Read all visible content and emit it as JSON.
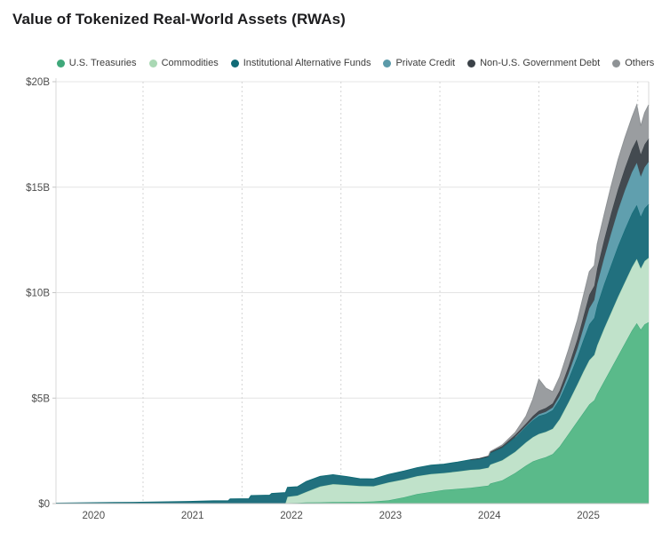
{
  "title": "Value of Tokenized Real-World Assets (RWAs)",
  "colors": {
    "background": "#ffffff",
    "title_text": "#1d1d1f",
    "legend_text": "#3c3c3c",
    "tick_text": "#4d4d4d",
    "grid_solid": "#e4e4e4",
    "grid_dashed": "#d4d4d4",
    "plot_border": "#d8d8d8",
    "axis_line": "#c6c6c6"
  },
  "chart_data": {
    "type": "area",
    "stacked": true,
    "title": "Value of Tokenized Real-World Assets (RWAs)",
    "unit": "USD billions",
    "legend_position": "top",
    "grid": "on",
    "x_domain": [
      2019.62,
      2025.61
    ],
    "x": [
      2019.62,
      2020.0,
      2020.4,
      2020.96,
      2021.21,
      2021.36,
      2021.38,
      2021.57,
      2021.59,
      2021.78,
      2021.8,
      2021.94,
      2021.96,
      2022.06,
      2022.15,
      2022.29,
      2022.42,
      2022.56,
      2022.69,
      2022.83,
      2022.98,
      2023.14,
      2023.27,
      2023.41,
      2023.54,
      2023.68,
      2023.81,
      2023.9,
      2023.99,
      2024.01,
      2024.13,
      2024.26,
      2024.37,
      2024.44,
      2024.5,
      2024.57,
      2024.64,
      2024.71,
      2024.8,
      2024.89,
      2024.95,
      2025.01,
      2025.06,
      2025.09,
      2025.16,
      2025.23,
      2025.3,
      2025.37,
      2025.44,
      2025.49,
      2025.53,
      2025.57,
      2025.61
    ],
    "series": [
      {
        "name": "U.S. Treasuries",
        "color": "#3fa87a",
        "fill": "#5aba8a",
        "values": [
          0,
          0,
          0,
          0,
          0,
          0,
          0,
          0,
          0,
          0,
          0,
          0.02,
          0.02,
          0.03,
          0.05,
          0.06,
          0.07,
          0.08,
          0.08,
          0.1,
          0.15,
          0.3,
          0.45,
          0.55,
          0.65,
          0.7,
          0.75,
          0.8,
          0.85,
          0.95,
          1.1,
          1.45,
          1.8,
          2.0,
          2.1,
          2.2,
          2.35,
          2.7,
          3.3,
          3.9,
          4.3,
          4.7,
          4.9,
          5.2,
          5.8,
          6.4,
          7.0,
          7.6,
          8.2,
          8.55,
          8.25,
          8.5,
          8.6
        ]
      },
      {
        "name": "Commodities",
        "color": "#a9d8b4",
        "fill": "#c0e2ca",
        "values": [
          0,
          0,
          0,
          0,
          0,
          0,
          0,
          0,
          0,
          0,
          0,
          0,
          0.3,
          0.35,
          0.5,
          0.75,
          0.85,
          0.8,
          0.75,
          0.72,
          0.85,
          0.85,
          0.85,
          0.85,
          0.8,
          0.82,
          0.85,
          0.82,
          0.85,
          0.9,
          0.95,
          1.0,
          1.1,
          1.15,
          1.2,
          1.2,
          1.2,
          1.3,
          1.5,
          1.75,
          1.95,
          2.1,
          2.15,
          2.3,
          2.5,
          2.65,
          2.8,
          2.9,
          3.0,
          3.05,
          2.9,
          3.0,
          3.05
        ]
      },
      {
        "name": "Institutional Alternative Funds",
        "color": "#116b76",
        "fill": "#21707e",
        "values": [
          0.02,
          0.04,
          0.06,
          0.1,
          0.13,
          0.13,
          0.22,
          0.23,
          0.38,
          0.4,
          0.48,
          0.5,
          0.45,
          0.42,
          0.5,
          0.48,
          0.45,
          0.4,
          0.35,
          0.35,
          0.38,
          0.4,
          0.4,
          0.42,
          0.42,
          0.45,
          0.48,
          0.5,
          0.52,
          0.55,
          0.6,
          0.7,
          0.75,
          0.8,
          0.85,
          0.85,
          0.88,
          0.95,
          1.1,
          1.3,
          1.5,
          1.7,
          1.75,
          1.9,
          2.1,
          2.25,
          2.4,
          2.5,
          2.55,
          2.55,
          2.45,
          2.5,
          2.55
        ]
      },
      {
        "name": "Private Credit",
        "color": "#5b9aa9",
        "fill": "#609fae",
        "values": [
          0,
          0,
          0,
          0,
          0,
          0,
          0,
          0,
          0,
          0,
          0,
          0,
          0,
          0,
          0,
          0,
          0,
          0,
          0,
          0,
          0,
          0,
          0,
          0,
          0,
          0,
          0,
          0,
          0,
          0,
          0,
          0,
          0.02,
          0.05,
          0.08,
          0.1,
          0.12,
          0.15,
          0.25,
          0.4,
          0.55,
          0.75,
          0.85,
          1.0,
          1.25,
          1.5,
          1.7,
          1.85,
          1.95,
          2.0,
          1.9,
          1.95,
          2.0
        ]
      },
      {
        "name": "Non-U.S. Government Debt",
        "color": "#3b4248",
        "fill": "#434a50",
        "values": [
          0,
          0,
          0,
          0,
          0,
          0,
          0,
          0,
          0,
          0,
          0,
          0,
          0,
          0,
          0,
          0,
          0,
          0,
          0,
          0,
          0,
          0,
          0,
          0,
          0,
          0,
          0,
          0.02,
          0.03,
          0.05,
          0.08,
          0.1,
          0.12,
          0.15,
          0.17,
          0.18,
          0.2,
          0.25,
          0.35,
          0.45,
          0.55,
          0.65,
          0.68,
          0.75,
          0.85,
          0.95,
          1.0,
          1.05,
          1.1,
          1.1,
          1.05,
          1.08,
          1.1
        ]
      },
      {
        "name": "Others",
        "color": "#8e9295",
        "fill": "#9a9da0",
        "values": [
          0,
          0,
          0,
          0,
          0,
          0,
          0,
          0,
          0,
          0,
          0,
          0,
          0,
          0,
          0,
          0,
          0,
          0,
          0,
          0,
          0,
          0,
          0,
          0,
          0,
          0,
          0,
          0,
          0,
          0.02,
          0.05,
          0.12,
          0.35,
          0.8,
          1.5,
          0.95,
          0.55,
          0.65,
          0.8,
          0.9,
          1.0,
          1.1,
          0.95,
          1.15,
          1.2,
          1.3,
          1.4,
          1.45,
          1.5,
          1.65,
          1.35,
          1.5,
          1.6
        ]
      }
    ],
    "y_axis": {
      "max": 20,
      "ticks": [
        {
          "label": "$0",
          "value": 0
        },
        {
          "label": "$5B",
          "value": 5
        },
        {
          "label": "$10B",
          "value": 10
        },
        {
          "label": "$15B",
          "value": 15
        },
        {
          "label": "$20B",
          "value": 20
        }
      ]
    },
    "x_axis": {
      "ticks": [
        {
          "label": "2020",
          "year": 2020
        },
        {
          "label": "2021",
          "year": 2021
        },
        {
          "label": "2022",
          "year": 2022
        },
        {
          "label": "2023",
          "year": 2023
        },
        {
          "label": "2024",
          "year": 2024
        },
        {
          "label": "2025",
          "year": 2025
        }
      ],
      "gridline_years": [
        2020.5,
        2021.5,
        2022.5,
        2023.5,
        2024.5,
        2025.5
      ]
    }
  }
}
